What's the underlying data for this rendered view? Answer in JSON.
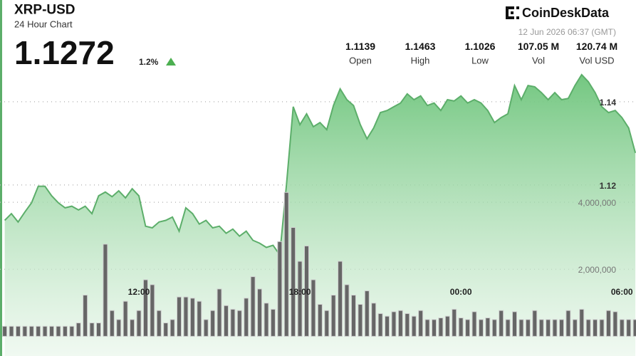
{
  "chart_data": {
    "type": "line",
    "title": "XRP-USD",
    "subtitle": "24 Hour Chart",
    "price": "1.1272",
    "change": "1.2%",
    "source": "CoinDeskData",
    "timestamp": "12 Jun 2026 06:37 (GMT)",
    "stats": [
      {
        "value": "1.1139",
        "label": "Open"
      },
      {
        "value": "1.1463",
        "label": "High"
      },
      {
        "value": "1.1026",
        "label": "Low"
      },
      {
        "value": "107.05 M",
        "label": "Vol"
      },
      {
        "value": "120.74 M",
        "label": "Vol USD"
      }
    ],
    "categories": [
      null,
      null,
      null,
      null,
      null,
      null,
      null,
      null,
      null,
      null,
      null,
      null,
      null,
      null,
      null,
      null,
      null,
      null,
      null,
      null,
      "12:00",
      null,
      null,
      null,
      null,
      null,
      null,
      null,
      null,
      null,
      null,
      null,
      null,
      null,
      null,
      null,
      null,
      null,
      null,
      null,
      null,
      null,
      null,
      null,
      "18:00",
      null,
      null,
      null,
      null,
      null,
      null,
      null,
      null,
      null,
      null,
      null,
      null,
      null,
      null,
      null,
      null,
      null,
      null,
      null,
      null,
      null,
      null,
      null,
      "00:00",
      null,
      null,
      null,
      null,
      null,
      null,
      null,
      null,
      null,
      null,
      null,
      null,
      null,
      null,
      null,
      null,
      null,
      null,
      null,
      null,
      null,
      null,
      null,
      "06:00",
      null,
      null
    ],
    "series": [
      {
        "name": "Price",
        "type": "area",
        "axis": "y",
        "color": "#5cae6a",
        "values": [
          1.1115,
          1.1131,
          1.1111,
          1.1135,
          1.1157,
          1.1197,
          1.1197,
          1.1174,
          1.1157,
          1.1145,
          1.1149,
          1.114,
          1.1149,
          1.1131,
          1.1174,
          1.1183,
          1.1172,
          1.1186,
          1.1169,
          1.1191,
          1.1174,
          1.1101,
          1.1097,
          1.1111,
          1.1115,
          1.1123,
          1.1089,
          1.1145,
          1.1131,
          1.1106,
          1.1115,
          1.1097,
          1.1101,
          1.1084,
          1.1094,
          1.1077,
          1.1089,
          1.1067,
          1.106,
          1.105,
          1.1055,
          1.1032,
          1.12,
          1.1388,
          1.1345,
          1.1371,
          1.134,
          1.135,
          1.1333,
          1.1391,
          1.1431,
          1.1405,
          1.1391,
          1.1345,
          1.1311,
          1.1337,
          1.1374,
          1.1379,
          1.1388,
          1.1397,
          1.1419,
          1.1405,
          1.1414,
          1.1391,
          1.1397,
          1.1379,
          1.1405,
          1.1402,
          1.1414,
          1.1397,
          1.1405,
          1.1397,
          1.1379,
          1.135,
          1.1362,
          1.1371,
          1.1439,
          1.1405,
          1.1439,
          1.1436,
          1.1422,
          1.1405,
          1.1422,
          1.1405,
          1.1408,
          1.1439,
          1.1465,
          1.1448,
          1.1422,
          1.1388,
          1.1374,
          1.1379,
          1.1362,
          1.1337,
          1.1277
        ]
      },
      {
        "name": "Volume",
        "type": "bar",
        "axis": "y2",
        "color": "#666666",
        "values": [
          300000,
          300000,
          300000,
          300000,
          300000,
          300000,
          300000,
          300000,
          300000,
          300000,
          300000,
          400000,
          1230000,
          400000,
          400000,
          2750000,
          770000,
          500000,
          1046000,
          500000,
          770000,
          1688000,
          1541000,
          770000,
          400000,
          500000,
          1174000,
          1174000,
          1138000,
          1046000,
          500000,
          770000,
          1413000,
          917000,
          807000,
          770000,
          1138000,
          1780000,
          1413000,
          991000,
          807000,
          2826000,
          4294000,
          3248000,
          2239000,
          2697000,
          1688000,
          954000,
          770000,
          1229000,
          2239000,
          1541000,
          1229000,
          954000,
          1358000,
          991000,
          679000,
          600000,
          734000,
          770000,
          679000,
          600000,
          770000,
          500000,
          500000,
          550000,
          600000,
          807000,
          550000,
          500000,
          734000,
          500000,
          550000,
          500000,
          770000,
          500000,
          734000,
          500000,
          500000,
          770000,
          500000,
          500000,
          500000,
          500000,
          770000,
          500000,
          807000,
          500000,
          500000,
          500000,
          770000,
          734000,
          500000,
          500000,
          500000
        ]
      }
    ],
    "ylim": [
      1.0789,
      1.1482
    ],
    "yticks": [
      1.12,
      1.14
    ],
    "y2lim": [
      -587000,
      8018000
    ],
    "y2ticks": [
      {
        "value": 4000000,
        "label": "4,000,000"
      },
      {
        "value": 2000000,
        "label": "2,000,000"
      }
    ],
    "grid": true
  }
}
